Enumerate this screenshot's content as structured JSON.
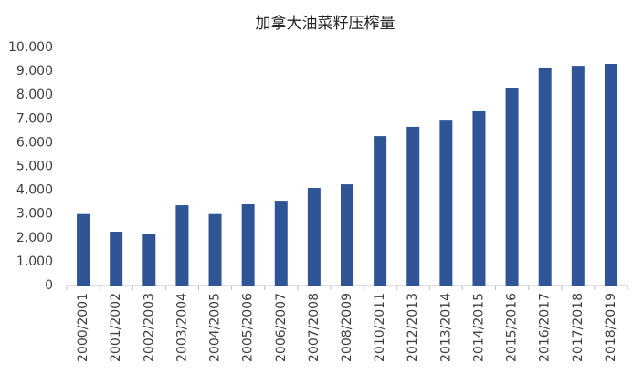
{
  "chart_data": {
    "type": "bar",
    "title": "加拿大油菜籽压榨量",
    "categories": [
      "2000/2001",
      "2001/2002",
      "2002/2003",
      "2003/2004",
      "2004/2005",
      "2005/2006",
      "2006/2007",
      "2007/2008",
      "2008/2009",
      "2010/2011",
      "2012/2013",
      "2013/2014",
      "2014/2015",
      "2015/2016",
      "2016/2017",
      "2017/2018",
      "2018/2019"
    ],
    "values": [
      3000,
      2260,
      2180,
      3370,
      3000,
      3410,
      3560,
      4100,
      4250,
      6280,
      6670,
      6930,
      7320,
      8280,
      9160,
      9230,
      9310
    ],
    "color": "#2f5597",
    "ylim": [
      0,
      10000
    ],
    "yticks": [
      0,
      {
        "value": 1000,
        "label": "1,000"
      },
      {
        "value": 2000,
        "label": "2,000"
      },
      {
        "value": 3000,
        "label": "3,000"
      },
      {
        "value": 4000,
        "label": "4,000"
      },
      {
        "value": 5000,
        "label": "5,000"
      },
      {
        "value": 6000,
        "label": "6,000"
      },
      {
        "value": 7000,
        "label": "7,000"
      },
      {
        "value": 8000,
        "label": "8,000"
      },
      {
        "value": 9000,
        "label": "9,000"
      },
      {
        "value": 10000,
        "label": "10,000"
      }
    ],
    "grid": false
  }
}
